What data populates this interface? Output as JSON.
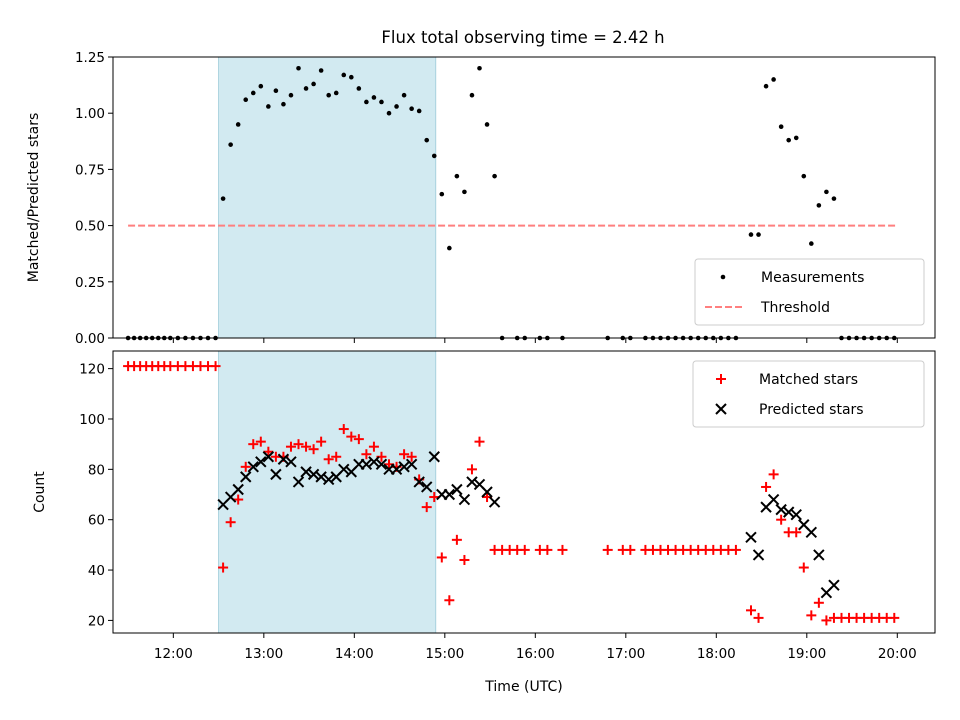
{
  "chart_data": [
    {
      "type": "scatter",
      "title": "Flux total observing time = 2.42 h",
      "xlabel": "",
      "ylabel": "Matched/Predicted stars",
      "xlim": [
        "11:20",
        "20:25"
      ],
      "ylim": [
        0,
        1.25
      ],
      "yticks": [
        "0.00",
        "0.25",
        "0.50",
        "0.75",
        "1.00",
        "1.25"
      ],
      "shaded_span": {
        "start": "12:30",
        "end": "14:54",
        "color": "#add8e6"
      },
      "legend_position": "lower-right",
      "series": [
        {
          "name": "Measurements",
          "marker": "dot",
          "color": "#000000",
          "points": [
            [
              "11:30",
              0
            ],
            [
              "11:34",
              0
            ],
            [
              "11:38",
              0
            ],
            [
              "11:42",
              0
            ],
            [
              "11:46",
              0
            ],
            [
              "11:50",
              0
            ],
            [
              "11:54",
              0
            ],
            [
              "11:58",
              0
            ],
            [
              "12:03",
              0
            ],
            [
              "12:08",
              0
            ],
            [
              "12:13",
              0
            ],
            [
              "12:18",
              0
            ],
            [
              "12:23",
              0
            ],
            [
              "12:28",
              0
            ],
            [
              "12:33",
              0.62
            ],
            [
              "12:38",
              0.86
            ],
            [
              "12:43",
              0.95
            ],
            [
              "12:48",
              1.06
            ],
            [
              "12:53",
              1.09
            ],
            [
              "12:58",
              1.12
            ],
            [
              "13:03",
              1.03
            ],
            [
              "13:08",
              1.1
            ],
            [
              "13:13",
              1.04
            ],
            [
              "13:18",
              1.08
            ],
            [
              "13:23",
              1.2
            ],
            [
              "13:28",
              1.11
            ],
            [
              "13:33",
              1.13
            ],
            [
              "13:38",
              1.19
            ],
            [
              "13:43",
              1.08
            ],
            [
              "13:48",
              1.09
            ],
            [
              "13:53",
              1.17
            ],
            [
              "13:58",
              1.16
            ],
            [
              "14:03",
              1.11
            ],
            [
              "14:08",
              1.05
            ],
            [
              "14:13",
              1.07
            ],
            [
              "14:18",
              1.05
            ],
            [
              "14:23",
              1.0
            ],
            [
              "14:28",
              1.03
            ],
            [
              "14:33",
              1.08
            ],
            [
              "14:38",
              1.02
            ],
            [
              "14:43",
              1.01
            ],
            [
              "14:48",
              0.88
            ],
            [
              "14:53",
              0.81
            ],
            [
              "14:58",
              0.64
            ],
            [
              "15:03",
              0.4
            ],
            [
              "15:08",
              0.72
            ],
            [
              "15:13",
              0.65
            ],
            [
              "15:18",
              1.08
            ],
            [
              "15:23",
              1.2
            ],
            [
              "15:28",
              0.95
            ],
            [
              "15:33",
              0.72
            ],
            [
              "15:38",
              0
            ],
            [
              "15:48",
              0
            ],
            [
              "15:53",
              0
            ],
            [
              "16:03",
              0
            ],
            [
              "16:08",
              0
            ],
            [
              "16:18",
              0
            ],
            [
              "16:48",
              0
            ],
            [
              "16:58",
              0
            ],
            [
              "17:03",
              0
            ],
            [
              "17:13",
              0
            ],
            [
              "17:18",
              0
            ],
            [
              "17:23",
              0
            ],
            [
              "17:28",
              0
            ],
            [
              "17:33",
              0
            ],
            [
              "17:38",
              0
            ],
            [
              "17:43",
              0
            ],
            [
              "17:48",
              0
            ],
            [
              "17:53",
              0
            ],
            [
              "17:58",
              0
            ],
            [
              "18:03",
              0
            ],
            [
              "18:08",
              0
            ],
            [
              "18:13",
              0
            ],
            [
              "18:23",
              0.46
            ],
            [
              "18:28",
              0.46
            ],
            [
              "18:33",
              1.12
            ],
            [
              "18:38",
              1.15
            ],
            [
              "18:43",
              0.94
            ],
            [
              "18:48",
              0.88
            ],
            [
              "18:53",
              0.89
            ],
            [
              "18:58",
              0.72
            ],
            [
              "19:03",
              0.42
            ],
            [
              "19:08",
              0.59
            ],
            [
              "19:13",
              0.65
            ],
            [
              "19:18",
              0.62
            ],
            [
              "19:23",
              0
            ],
            [
              "19:28",
              0
            ],
            [
              "19:33",
              0
            ],
            [
              "19:38",
              0
            ],
            [
              "19:43",
              0
            ],
            [
              "19:48",
              0
            ],
            [
              "19:53",
              0
            ],
            [
              "19:58",
              0
            ]
          ]
        },
        {
          "name": "Threshold",
          "line": "dashed",
          "color": "#ff7f7f",
          "points": [
            [
              "11:30",
              0.5
            ],
            [
              "20:00",
              0.5
            ]
          ]
        }
      ]
    },
    {
      "type": "scatter",
      "title": "",
      "xlabel": "Time (UTC)",
      "ylabel": "Count",
      "xlim": [
        "11:20",
        "20:25"
      ],
      "ylim": [
        15,
        127
      ],
      "yticks": [
        "20",
        "40",
        "60",
        "80",
        "100",
        "120"
      ],
      "xticks": [
        "12:00",
        "13:00",
        "14:00",
        "15:00",
        "16:00",
        "17:00",
        "18:00",
        "19:00",
        "20:00"
      ],
      "shaded_span": {
        "start": "12:30",
        "end": "14:54",
        "color": "#add8e6"
      },
      "legend_position": "upper-right",
      "series": [
        {
          "name": "Matched stars",
          "marker": "plus",
          "color": "#ff0000",
          "points": [
            [
              "11:30",
              121
            ],
            [
              "11:34",
              121
            ],
            [
              "11:38",
              121
            ],
            [
              "11:42",
              121
            ],
            [
              "11:46",
              121
            ],
            [
              "11:50",
              121
            ],
            [
              "11:54",
              121
            ],
            [
              "11:58",
              121
            ],
            [
              "12:03",
              121
            ],
            [
              "12:08",
              121
            ],
            [
              "12:13",
              121
            ],
            [
              "12:18",
              121
            ],
            [
              "12:23",
              121
            ],
            [
              "12:28",
              121
            ],
            [
              "12:33",
              41
            ],
            [
              "12:38",
              59
            ],
            [
              "12:43",
              68
            ],
            [
              "12:48",
              81
            ],
            [
              "12:53",
              90
            ],
            [
              "12:58",
              91
            ],
            [
              "13:03",
              87
            ],
            [
              "13:08",
              85
            ],
            [
              "13:13",
              85
            ],
            [
              "13:18",
              89
            ],
            [
              "13:23",
              90
            ],
            [
              "13:28",
              89
            ],
            [
              "13:33",
              88
            ],
            [
              "13:38",
              91
            ],
            [
              "13:43",
              84
            ],
            [
              "13:48",
              85
            ],
            [
              "13:53",
              96
            ],
            [
              "13:58",
              93
            ],
            [
              "14:03",
              92
            ],
            [
              "14:08",
              86
            ],
            [
              "14:13",
              89
            ],
            [
              "14:18",
              85
            ],
            [
              "14:23",
              82
            ],
            [
              "14:28",
              81
            ],
            [
              "14:33",
              86
            ],
            [
              "14:38",
              85
            ],
            [
              "14:43",
              76
            ],
            [
              "14:48",
              65
            ],
            [
              "14:53",
              69
            ],
            [
              "14:58",
              45
            ],
            [
              "15:03",
              28
            ],
            [
              "15:08",
              52
            ],
            [
              "15:13",
              44
            ],
            [
              "15:18",
              80
            ],
            [
              "15:23",
              91
            ],
            [
              "15:28",
              69
            ],
            [
              "15:33",
              48
            ],
            [
              "15:38",
              48
            ],
            [
              "15:43",
              48
            ],
            [
              "15:48",
              48
            ],
            [
              "15:53",
              48
            ],
            [
              "16:03",
              48
            ],
            [
              "16:08",
              48
            ],
            [
              "16:18",
              48
            ],
            [
              "16:48",
              48
            ],
            [
              "16:58",
              48
            ],
            [
              "17:03",
              48
            ],
            [
              "17:13",
              48
            ],
            [
              "17:18",
              48
            ],
            [
              "17:23",
              48
            ],
            [
              "17:28",
              48
            ],
            [
              "17:33",
              48
            ],
            [
              "17:38",
              48
            ],
            [
              "17:43",
              48
            ],
            [
              "17:48",
              48
            ],
            [
              "17:53",
              48
            ],
            [
              "17:58",
              48
            ],
            [
              "18:03",
              48
            ],
            [
              "18:08",
              48
            ],
            [
              "18:13",
              48
            ],
            [
              "18:23",
              24
            ],
            [
              "18:28",
              21
            ],
            [
              "18:33",
              73
            ],
            [
              "18:38",
              78
            ],
            [
              "18:43",
              60
            ],
            [
              "18:48",
              55
            ],
            [
              "18:53",
              55
            ],
            [
              "18:58",
              41
            ],
            [
              "19:03",
              22
            ],
            [
              "19:08",
              27
            ],
            [
              "19:13",
              20
            ],
            [
              "19:18",
              21
            ],
            [
              "19:23",
              21
            ],
            [
              "19:28",
              21
            ],
            [
              "19:33",
              21
            ],
            [
              "19:38",
              21
            ],
            [
              "19:43",
              21
            ],
            [
              "19:48",
              21
            ],
            [
              "19:53",
              21
            ],
            [
              "19:58",
              21
            ]
          ]
        },
        {
          "name": "Predicted stars",
          "marker": "x",
          "color": "#000000",
          "points": [
            [
              "12:33",
              66
            ],
            [
              "12:38",
              69
            ],
            [
              "12:43",
              72
            ],
            [
              "12:48",
              77
            ],
            [
              "12:53",
              81
            ],
            [
              "12:58",
              83
            ],
            [
              "13:03",
              85
            ],
            [
              "13:08",
              78
            ],
            [
              "13:13",
              84
            ],
            [
              "13:18",
              83
            ],
            [
              "13:23",
              75
            ],
            [
              "13:28",
              79
            ],
            [
              "13:33",
              78
            ],
            [
              "13:38",
              77
            ],
            [
              "13:43",
              76
            ],
            [
              "13:48",
              77
            ],
            [
              "13:53",
              80
            ],
            [
              "13:58",
              79
            ],
            [
              "14:03",
              82
            ],
            [
              "14:08",
              82
            ],
            [
              "14:13",
              83
            ],
            [
              "14:18",
              82
            ],
            [
              "14:23",
              80
            ],
            [
              "14:28",
              80
            ],
            [
              "14:33",
              81
            ],
            [
              "14:38",
              82
            ],
            [
              "14:43",
              75
            ],
            [
              "14:48",
              73
            ],
            [
              "14:53",
              85
            ],
            [
              "14:58",
              70
            ],
            [
              "15:03",
              70
            ],
            [
              "15:08",
              72
            ],
            [
              "15:13",
              68
            ],
            [
              "15:18",
              75
            ],
            [
              "15:23",
              74
            ],
            [
              "15:28",
              71
            ],
            [
              "15:33",
              67
            ],
            [
              "18:23",
              53
            ],
            [
              "18:28",
              46
            ],
            [
              "18:33",
              65
            ],
            [
              "18:38",
              68
            ],
            [
              "18:43",
              64
            ],
            [
              "18:48",
              63
            ],
            [
              "18:53",
              62
            ],
            [
              "18:58",
              58
            ],
            [
              "19:03",
              55
            ],
            [
              "19:08",
              46
            ],
            [
              "19:13",
              31
            ],
            [
              "19:18",
              34
            ]
          ]
        }
      ]
    }
  ]
}
